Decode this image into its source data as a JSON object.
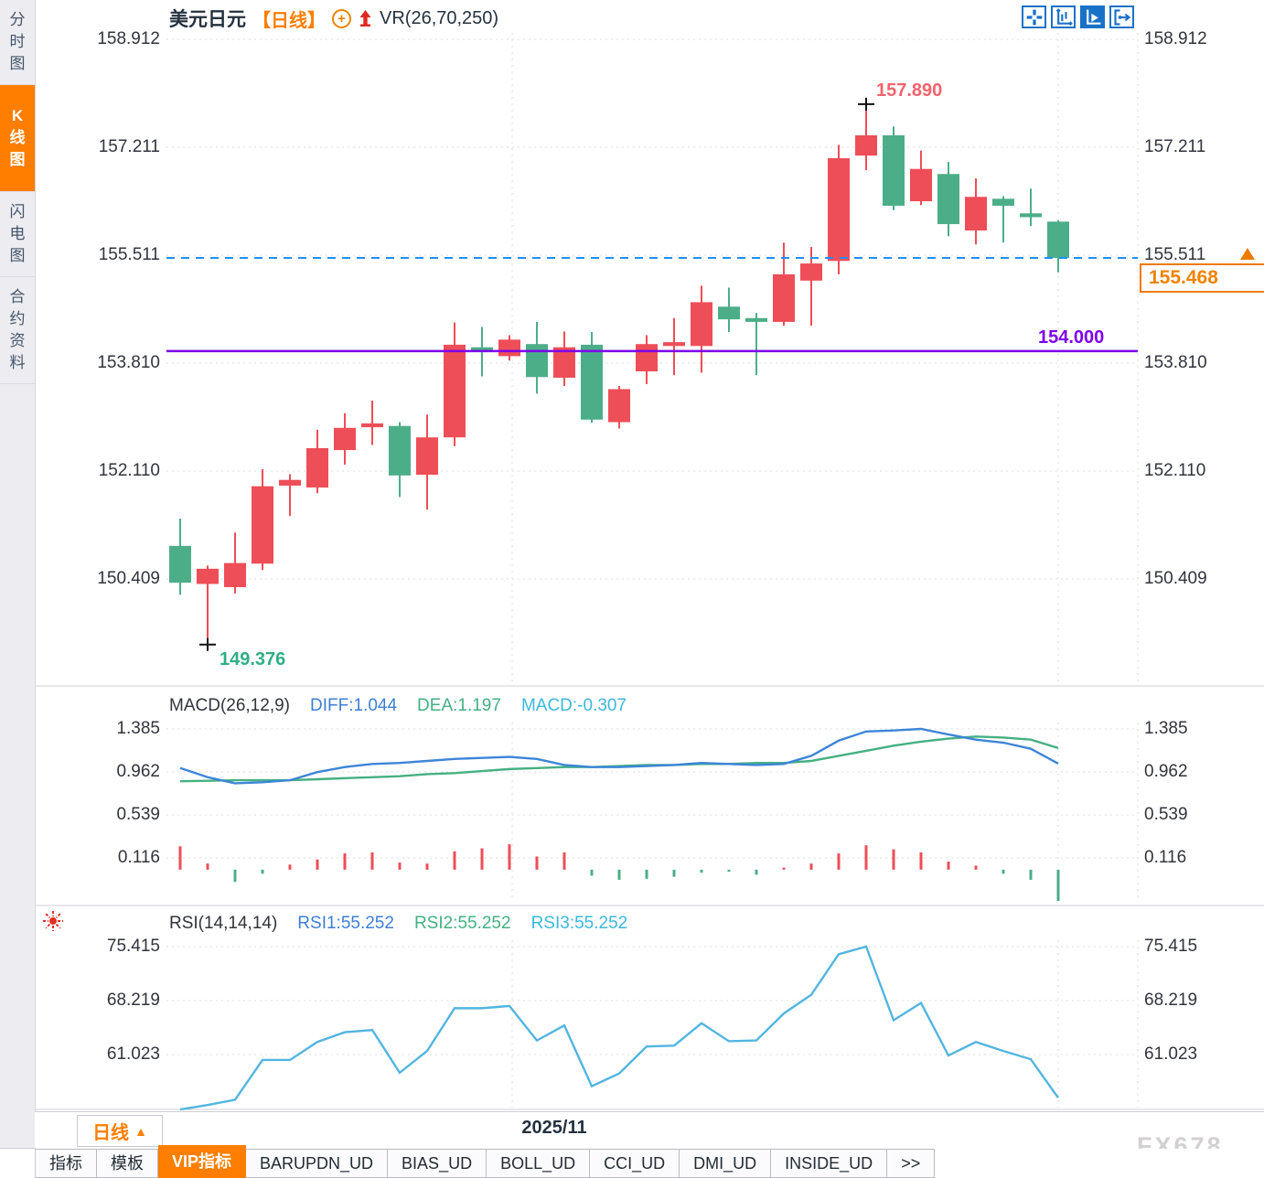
{
  "sidebar": {
    "items": [
      {
        "label": "分时图",
        "active": false
      },
      {
        "label": "K线图",
        "active": true
      },
      {
        "label": "闪电图",
        "active": false
      },
      {
        "label": "合约资料",
        "active": false
      }
    ]
  },
  "header": {
    "symbol": "美元日元",
    "period_tag": "【日线】",
    "indicator": "VR(26,70,250)",
    "toolbar_icons": [
      "move-crosshair-icon",
      "axis-scale-icon",
      "axis-play-icon",
      "pan-right-icon"
    ],
    "active_toolbar_icon": "axis-play-icon"
  },
  "price_panel": {
    "high_label": "157.890",
    "low_label": "149.376",
    "hline_label": "154.000",
    "last_price": "155.468"
  },
  "macd_panel": {
    "title": "MACD(26,12,9)",
    "diff_label": "DIFF:1.044",
    "dea_label": "DEA:1.197",
    "macd_label": "MACD:-0.307"
  },
  "rsi_panel": {
    "title": "RSI(14,14,14)",
    "rsi1_label": "RSI1:55.252",
    "rsi2_label": "RSI2:55.252",
    "rsi3_label": "RSI3:55.252"
  },
  "footer": {
    "period_button": "日线",
    "period_arrow": "▲",
    "date_label": "2025/11",
    "watermark": "FX678",
    "tabs": [
      {
        "label": "指标",
        "active": false
      },
      {
        "label": "模板",
        "active": false
      },
      {
        "label": "VIP指标",
        "active": true
      },
      {
        "label": "BARUPDN_UD",
        "active": false
      },
      {
        "label": "BIAS_UD",
        "active": false
      },
      {
        "label": "BOLL_UD",
        "active": false
      },
      {
        "label": "CCI_UD",
        "active": false
      },
      {
        "label": "DMI_UD",
        "active": false
      },
      {
        "label": "INSIDE_UD",
        "active": false
      },
      {
        "label": ">>",
        "active": false
      }
    ]
  },
  "colors": {
    "up": "#ee4e57",
    "down": "#4cae88",
    "diff_line": "#3d85d8",
    "dea_line": "#45b083",
    "rsi_line": "#52b5e0",
    "dashed_price_line": "#1e8fff",
    "hline": "#7d00e8",
    "accent_orange": "#ff7e00",
    "grid": "#dcdce4",
    "high_label": "#f5626e",
    "low_label": "#2fae85"
  },
  "chart_data": [
    {
      "type": "candlestick",
      "title": "美元日元 日线",
      "y_ticks": [
        158.912,
        157.211,
        155.511,
        153.81,
        152.11,
        150.409
      ],
      "x_gridline_label": "2025/11",
      "ohlc": [
        [
          150.93,
          151.36,
          150.16,
          150.35
        ],
        [
          150.33,
          150.62,
          149.376,
          150.57
        ],
        [
          150.28,
          151.14,
          150.18,
          150.66
        ],
        [
          150.65,
          152.14,
          150.55,
          151.87
        ],
        [
          151.88,
          152.06,
          151.4,
          151.97
        ],
        [
          151.85,
          152.76,
          151.76,
          152.47
        ],
        [
          152.44,
          153.02,
          152.21,
          152.79
        ],
        [
          152.8,
          153.22,
          152.52,
          152.86
        ],
        [
          152.82,
          152.88,
          151.7,
          152.04
        ],
        [
          152.05,
          153.0,
          151.5,
          152.64
        ],
        [
          152.64,
          154.45,
          152.5,
          154.1
        ],
        [
          154.06,
          154.38,
          153.6,
          154.0
        ],
        [
          153.92,
          154.25,
          153.85,
          154.18
        ],
        [
          154.11,
          154.46,
          153.33,
          153.59
        ],
        [
          153.58,
          154.31,
          153.45,
          154.06
        ],
        [
          154.1,
          154.3,
          152.87,
          152.92
        ],
        [
          152.88,
          153.45,
          152.78,
          153.4
        ],
        [
          153.68,
          154.25,
          153.48,
          154.11
        ],
        [
          154.08,
          154.52,
          153.62,
          154.14
        ],
        [
          154.08,
          155.03,
          153.66,
          154.77
        ],
        [
          154.7,
          155.0,
          154.3,
          154.5
        ],
        [
          154.52,
          154.6,
          153.62,
          154.46
        ],
        [
          154.46,
          155.71,
          154.4,
          155.21
        ],
        [
          155.11,
          155.64,
          154.4,
          155.38
        ],
        [
          155.42,
          157.25,
          155.21,
          157.04
        ],
        [
          157.08,
          157.89,
          156.85,
          157.4
        ],
        [
          157.4,
          157.54,
          156.22,
          156.29
        ],
        [
          156.36,
          157.16,
          156.3,
          156.87
        ],
        [
          156.79,
          156.98,
          155.81,
          156.0
        ],
        [
          155.9,
          156.72,
          155.68,
          156.43
        ],
        [
          156.4,
          156.44,
          155.71,
          156.29
        ],
        [
          156.17,
          156.56,
          155.97,
          156.11
        ],
        [
          156.04,
          156.06,
          155.24,
          155.468
        ]
      ],
      "annotations": {
        "high": {
          "index": 25,
          "value": 157.89,
          "label": "157.890"
        },
        "low": {
          "index": 1,
          "value": 149.376,
          "label": "149.376"
        },
        "hline": {
          "value": 154.0,
          "label": "154.000"
        },
        "last_price": {
          "value": 155.468,
          "label": "155.468"
        }
      }
    },
    {
      "type": "macd",
      "title": "MACD(26,12,9)",
      "values": {
        "DIFF": 1.044,
        "DEA": 1.197,
        "MACD": -0.307
      },
      "y_ticks": [
        1.385,
        0.962,
        0.539,
        0.116
      ],
      "diff": [
        1.0,
        0.91,
        0.85,
        0.86,
        0.88,
        0.96,
        1.01,
        1.04,
        1.05,
        1.07,
        1.09,
        1.1,
        1.11,
        1.09,
        1.03,
        1.01,
        1.01,
        1.02,
        1.03,
        1.05,
        1.04,
        1.03,
        1.04,
        1.12,
        1.27,
        1.36,
        1.37,
        1.385,
        1.33,
        1.28,
        1.25,
        1.19,
        1.044
      ],
      "dea": [
        0.87,
        0.875,
        0.88,
        0.88,
        0.88,
        0.89,
        0.9,
        0.91,
        0.92,
        0.94,
        0.95,
        0.97,
        0.99,
        1.0,
        1.01,
        1.01,
        1.02,
        1.03,
        1.03,
        1.04,
        1.04,
        1.05,
        1.05,
        1.07,
        1.12,
        1.17,
        1.22,
        1.26,
        1.29,
        1.31,
        1.3,
        1.28,
        1.197
      ],
      "histogram": [
        0.23,
        0.06,
        -0.12,
        -0.04,
        0.05,
        0.1,
        0.16,
        0.17,
        0.07,
        0.06,
        0.18,
        0.21,
        0.25,
        0.13,
        0.17,
        -0.06,
        -0.1,
        -0.09,
        -0.07,
        -0.03,
        -0.02,
        -0.05,
        0.02,
        0.06,
        0.16,
        0.24,
        0.2,
        0.17,
        0.08,
        0.04,
        -0.04,
        -0.1,
        -0.307
      ]
    },
    {
      "type": "line",
      "title": "RSI(14,14,14)",
      "values": {
        "RSI1": 55.252,
        "RSI2": 55.252,
        "RSI3": 55.252
      },
      "y_ticks": [
        75.415,
        68.219,
        61.023
      ],
      "rsi": [
        53.7,
        54.3,
        55.0,
        60.3,
        60.3,
        62.7,
        64.0,
        64.3,
        58.6,
        61.5,
        67.2,
        67.2,
        67.5,
        62.9,
        64.9,
        56.8,
        58.5,
        62.1,
        62.2,
        65.2,
        62.8,
        62.9,
        66.5,
        69.0,
        74.4,
        75.415,
        65.6,
        67.9,
        60.9,
        62.7,
        61.5,
        60.4,
        55.252
      ]
    }
  ]
}
